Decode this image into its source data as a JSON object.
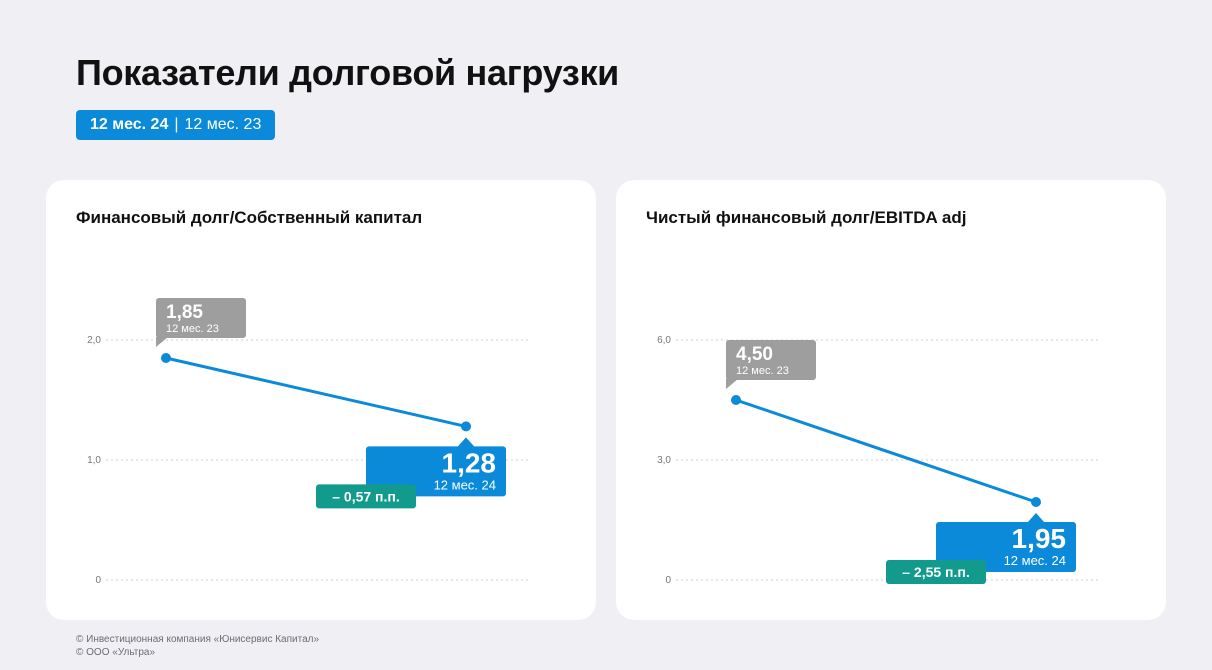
{
  "title": "Показатели долговой нагрузки",
  "period_toggle": {
    "current": "12 мес. 24",
    "separator": "|",
    "previous": "12 мес. 23"
  },
  "colors": {
    "accent": "#0a8ad8",
    "previous_label_bg": "#9e9e9e",
    "delta_bg": "#129a8c",
    "grid": "#cfcfd6",
    "card_bg": "#ffffff",
    "page_bg": "#efeff4"
  },
  "chart_data": [
    {
      "type": "line",
      "title": "Финансовый долг/Собственный капитал",
      "x": [
        "12 мес. 23",
        "12 мес. 24"
      ],
      "ylim": [
        0,
        2.0
      ],
      "yticks": [
        "0",
        "1,0",
        "2,0"
      ],
      "grid": true,
      "series": [
        {
          "values": [
            1.85,
            1.28
          ],
          "labels": [
            "1,85",
            "1,28"
          ],
          "periods": [
            "12 мес. 23",
            "12 мес. 24"
          ]
        }
      ],
      "delta": "– 0,57 п.п."
    },
    {
      "type": "line",
      "title": "Чистый финансовый долг/EBITDA adj",
      "x": [
        "12 мес. 23",
        "12 мес. 24"
      ],
      "ylim": [
        0,
        6.0
      ],
      "yticks": [
        "0",
        "3,0",
        "6,0"
      ],
      "grid": true,
      "series": [
        {
          "values": [
            4.5,
            1.95
          ],
          "labels": [
            "4,50",
            "1,95"
          ],
          "periods": [
            "12 мес. 23",
            "12 мес. 24"
          ]
        }
      ],
      "delta": "– 2,55 п.п."
    }
  ],
  "footer": [
    "© Инвестиционная компания «Юнисервис Капитал»",
    "© ООО «Ультра»"
  ]
}
